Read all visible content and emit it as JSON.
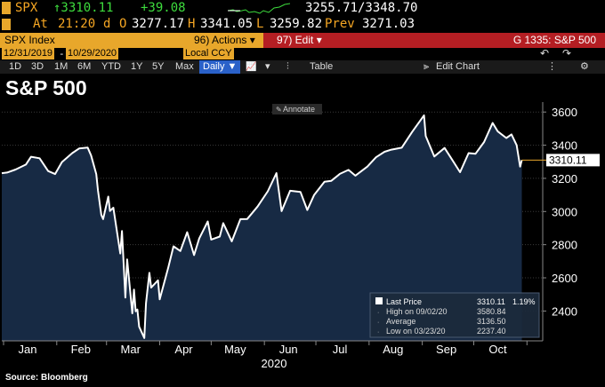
{
  "quote": {
    "ticker": "SPX",
    "last": "↑3310.11",
    "change": "+39.08",
    "range_label": "3255.71/3348.70",
    "at_label": "At",
    "time": "21:20",
    "d_label": "d",
    "o_label": "O",
    "open": "3277.17",
    "h_label": "H",
    "high": "3341.05",
    "l_label": "L",
    "low": "3259.82",
    "prev_label": "Prev",
    "prev": "3271.03"
  },
  "function_bar": {
    "security": "SPX Index",
    "actions": "96) Actions ▾",
    "edit": "97) Edit ▾",
    "function": "G 1335: S&P 500"
  },
  "dates": {
    "start": "12/31/2019",
    "end": "10/29/2020",
    "currency": "Local CCY"
  },
  "toolbar": {
    "ranges": [
      "1D",
      "3D",
      "1M",
      "6M",
      "YTD",
      "1Y",
      "5Y",
      "Max"
    ],
    "frequency": "Daily ▼",
    "table": "Table",
    "edit_chart": "Edit Chart"
  },
  "annotate": "Annotate",
  "title": "S&P 500",
  "source": "Source: Bloomberg",
  "legend": {
    "last_label": "Last Price",
    "last_value": "3310.11",
    "last_pct": "1.19%",
    "high_label": "High on 09/02/20",
    "high_value": "3580.84",
    "avg_label": "Average",
    "avg_value": "3136.50",
    "low_label": "Low on 03/23/20",
    "low_value": "2237.40"
  },
  "colors": {
    "line": "#ffffff",
    "area": "#172a44",
    "amber": "#e8a72b",
    "red": "#b41e23",
    "green": "#3ddc3d"
  },
  "chart_data": {
    "type": "area",
    "x_tick_labels": [
      "Jan",
      "Feb",
      "Mar",
      "Apr",
      "May",
      "Jun",
      "Jul",
      "Aug",
      "Sep",
      "Oct"
    ],
    "year_label": "2020",
    "y_ticks": [
      2400,
      2600,
      2800,
      3000,
      3200,
      3400,
      3600
    ],
    "ylim": [
      2220,
      3660
    ],
    "last_value_label": "3310.11",
    "x": [
      "2019-12-31",
      "2020-01-03",
      "2020-01-08",
      "2020-01-14",
      "2020-01-17",
      "2020-01-22",
      "2020-01-27",
      "2020-01-31",
      "2020-02-04",
      "2020-02-10",
      "2020-02-14",
      "2020-02-19",
      "2020-02-21",
      "2020-02-24",
      "2020-02-25",
      "2020-02-27",
      "2020-02-28",
      "2020-03-02",
      "2020-03-03",
      "2020-03-05",
      "2020-03-09",
      "2020-03-10",
      "2020-03-12",
      "2020-03-13",
      "2020-03-16",
      "2020-03-17",
      "2020-03-18",
      "2020-03-19",
      "2020-03-20",
      "2020-03-23",
      "2020-03-24",
      "2020-03-26",
      "2020-03-27",
      "2020-03-31",
      "2020-04-01",
      "2020-04-06",
      "2020-04-09",
      "2020-04-13",
      "2020-04-17",
      "2020-04-21",
      "2020-04-24",
      "2020-04-29",
      "2020-05-01",
      "2020-05-06",
      "2020-05-08",
      "2020-05-13",
      "2020-05-18",
      "2020-05-22",
      "2020-05-28",
      "2020-06-03",
      "2020-06-08",
      "2020-06-11",
      "2020-06-16",
      "2020-06-22",
      "2020-06-26",
      "2020-06-30",
      "2020-07-06",
      "2020-07-10",
      "2020-07-15",
      "2020-07-20",
      "2020-07-24",
      "2020-07-31",
      "2020-08-05",
      "2020-08-10",
      "2020-08-14",
      "2020-08-20",
      "2020-08-26",
      "2020-09-02",
      "2020-09-03",
      "2020-09-08",
      "2020-09-14",
      "2020-09-18",
      "2020-09-23",
      "2020-09-28",
      "2020-10-02",
      "2020-10-07",
      "2020-10-12",
      "2020-10-15",
      "2020-10-20",
      "2020-10-23",
      "2020-10-26",
      "2020-10-28",
      "2020-10-29"
    ],
    "series": [
      {
        "values": [
          3231,
          3235,
          3253,
          3283,
          3330,
          3321,
          3244,
          3226,
          3298,
          3352,
          3380,
          3386,
          3338,
          3226,
          3128,
          2979,
          2954,
          3090,
          3003,
          3023,
          2747,
          2882,
          2481,
          2711,
          2386,
          2529,
          2398,
          2409,
          2305,
          2237,
          2447,
          2630,
          2541,
          2585,
          2470,
          2664,
          2790,
          2762,
          2875,
          2737,
          2837,
          2940,
          2831,
          2849,
          2930,
          2820,
          2954,
          2955,
          3030,
          3122,
          3232,
          3002,
          3125,
          3118,
          3009,
          3100,
          3180,
          3185,
          3227,
          3251,
          3216,
          3271,
          3327,
          3360,
          3373,
          3385,
          3479,
          3580,
          3455,
          3332,
          3383,
          3319,
          3237,
          3352,
          3348,
          3419,
          3534,
          3483,
          3443,
          3465,
          3400,
          3271,
          3310
        ]
      }
    ]
  }
}
